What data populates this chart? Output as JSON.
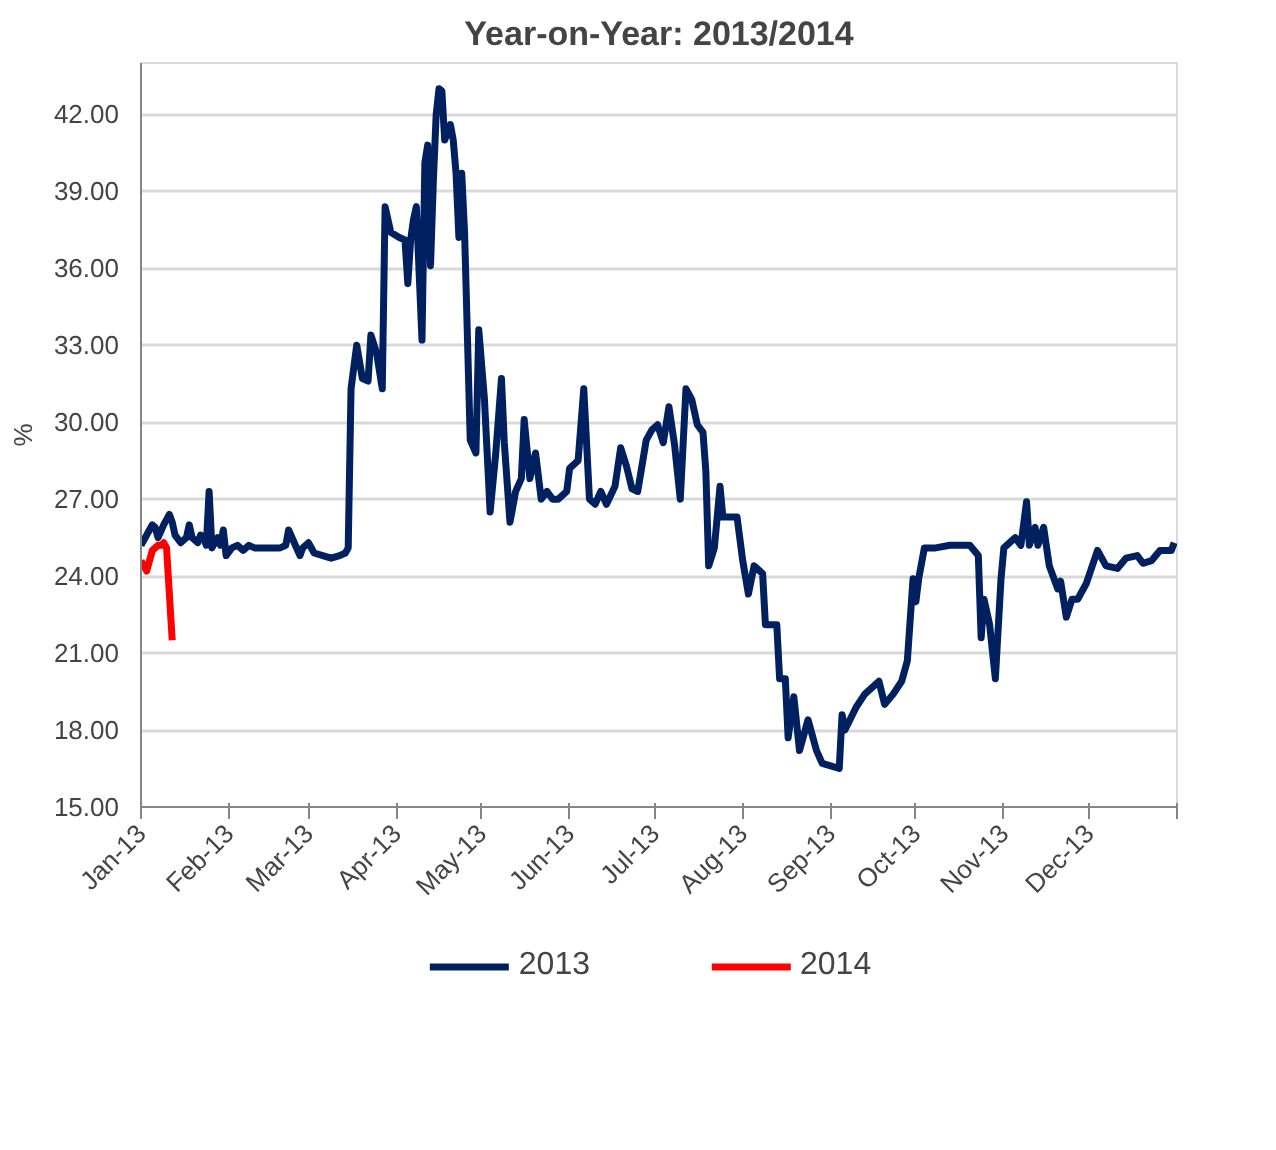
{
  "chart_data": {
    "type": "line",
    "title": "Year-on-Year: 2013/2014",
    "ylabel": "%",
    "xlim": [
      "2013-01-01",
      "2014-01-01"
    ],
    "xticks": [
      {
        "value": "2013-01-01",
        "label": "Jan-13"
      },
      {
        "value": "2013-02-01",
        "label": "Feb-13"
      },
      {
        "value": "2013-03-01",
        "label": "Mar-13"
      },
      {
        "value": "2013-04-01",
        "label": "Apr-13"
      },
      {
        "value": "2013-05-01",
        "label": "May-13"
      },
      {
        "value": "2013-06-01",
        "label": "Jun-13"
      },
      {
        "value": "2013-07-01",
        "label": "Jul-13"
      },
      {
        "value": "2013-08-01",
        "label": "Aug-13"
      },
      {
        "value": "2013-09-01",
        "label": "Sep-13"
      },
      {
        "value": "2013-10-01",
        "label": "Oct-13"
      },
      {
        "value": "2013-11-01",
        "label": "Nov-13"
      },
      {
        "value": "2013-12-01",
        "label": "Dec-13"
      },
      {
        "value": "2014-01-01",
        "label": null
      }
    ],
    "ylim": [
      15,
      44
    ],
    "yticks": [
      {
        "value": 15,
        "label": "15.00"
      },
      {
        "value": 18,
        "label": "18.00"
      },
      {
        "value": 21,
        "label": "21.00"
      },
      {
        "value": 24,
        "label": "24.00"
      },
      {
        "value": 27,
        "label": "27.00"
      },
      {
        "value": 30,
        "label": "30.00"
      },
      {
        "value": 33,
        "label": "33.00"
      },
      {
        "value": 36,
        "label": "36.00"
      },
      {
        "value": 39,
        "label": "39.00"
      },
      {
        "value": 42,
        "label": "42.00"
      }
    ],
    "grid": "y",
    "legend": "bottom",
    "line_style": "solid",
    "series": [
      {
        "name": "2013",
        "color": "#002060",
        "x": [
          "2013-01-01",
          "2013-01-03",
          "2013-01-05",
          "2013-01-06",
          "2013-01-07",
          "2013-01-09",
          "2013-01-10",
          "2013-01-11",
          "2013-01-12",
          "2013-01-13",
          "2013-01-15",
          "2013-01-17",
          "2013-01-18",
          "2013-01-19",
          "2013-01-21",
          "2013-01-22",
          "2013-01-23",
          "2013-01-24",
          "2013-01-25",
          "2013-01-26",
          "2013-01-27",
          "2013-01-28",
          "2013-01-29",
          "2013-01-30",
          "2013-01-31",
          "2013-02-02",
          "2013-02-04",
          "2013-02-06",
          "2013-02-08",
          "2013-02-10",
          "2013-02-13",
          "2013-02-16",
          "2013-02-19",
          "2013-02-21",
          "2013-02-22",
          "2013-02-24",
          "2013-02-26",
          "2013-02-27",
          "2013-03-01",
          "2013-03-03",
          "2013-03-06",
          "2013-03-09",
          "2013-03-12",
          "2013-03-14",
          "2013-03-15",
          "2013-03-16",
          "2013-03-18",
          "2013-03-20",
          "2013-03-22",
          "2013-03-23",
          "2013-03-25",
          "2013-03-27",
          "2013-03-28",
          "2013-03-30",
          "2013-04-02",
          "2013-04-04",
          "2013-04-05",
          "2013-04-06",
          "2013-04-07",
          "2013-04-08",
          "2013-04-10",
          "2013-04-11",
          "2013-04-12",
          "2013-04-13",
          "2013-04-14",
          "2013-04-15",
          "2013-04-16",
          "2013-04-17",
          "2013-04-18",
          "2013-04-20",
          "2013-04-21",
          "2013-04-22",
          "2013-04-23",
          "2013-04-24",
          "2013-04-25",
          "2013-04-27",
          "2013-04-29",
          "2013-04-30",
          "2013-05-02",
          "2013-05-04",
          "2013-05-06",
          "2013-05-08",
          "2013-05-09",
          "2013-05-11",
          "2013-05-13",
          "2013-05-15",
          "2013-05-16",
          "2013-05-18",
          "2013-05-19",
          "2013-05-20",
          "2013-05-22",
          "2013-05-24",
          "2013-05-26",
          "2013-05-28",
          "2013-05-31",
          "2013-06-01",
          "2013-06-04",
          "2013-06-06",
          "2013-06-08",
          "2013-06-10",
          "2013-06-12",
          "2013-06-14",
          "2013-06-17",
          "2013-06-19",
          "2013-06-21",
          "2013-06-23",
          "2013-06-25",
          "2013-06-28",
          "2013-06-30",
          "2013-07-02",
          "2013-07-04",
          "2013-07-06",
          "2013-07-08",
          "2013-07-10",
          "2013-07-12",
          "2013-07-14",
          "2013-07-16",
          "2013-07-18",
          "2013-07-19",
          "2013-07-20",
          "2013-07-22",
          "2013-07-24",
          "2013-07-25",
          "2013-07-27",
          "2013-07-30",
          "2013-08-01",
          "2013-08-03",
          "2013-08-05",
          "2013-08-08",
          "2013-08-09",
          "2013-08-13",
          "2013-08-14",
          "2013-08-16",
          "2013-08-17",
          "2013-08-19",
          "2013-08-21",
          "2013-08-24",
          "2013-08-27",
          "2013-08-29",
          "2013-09-01",
          "2013-09-04",
          "2013-09-05",
          "2013-09-06",
          "2013-09-10",
          "2013-09-13",
          "2013-09-17",
          "2013-09-18",
          "2013-09-20",
          "2013-09-23",
          "2013-09-26",
          "2013-09-28",
          "2013-09-30",
          "2013-10-01",
          "2013-10-02",
          "2013-10-04",
          "2013-10-08",
          "2013-10-13",
          "2013-10-20",
          "2013-10-23",
          "2013-10-24",
          "2013-10-25",
          "2013-10-27",
          "2013-10-29",
          "2013-10-31",
          "2013-11-01",
          "2013-11-05",
          "2013-11-07",
          "2013-11-09",
          "2013-11-10",
          "2013-11-12",
          "2013-11-13",
          "2013-11-15",
          "2013-11-17",
          "2013-11-20",
          "2013-11-21",
          "2013-11-23",
          "2013-11-25",
          "2013-11-27",
          "2013-11-30",
          "2013-12-04",
          "2013-12-07",
          "2013-12-11",
          "2013-12-14",
          "2013-12-18",
          "2013-12-20",
          "2013-12-23",
          "2013-12-26",
          "2013-12-30",
          "2013-12-31"
        ],
        "values": [
          25.2,
          25.6,
          26.0,
          25.9,
          25.5,
          26.0,
          26.2,
          26.4,
          26.1,
          25.6,
          25.3,
          25.5,
          26.0,
          25.5,
          25.3,
          25.6,
          25.5,
          25.2,
          27.3,
          25.1,
          25.3,
          25.5,
          25.2,
          25.8,
          24.8,
          25.1,
          25.2,
          25.0,
          25.2,
          25.1,
          25.1,
          25.1,
          25.1,
          25.2,
          25.8,
          25.3,
          24.8,
          25.1,
          25.3,
          24.9,
          24.8,
          24.7,
          24.8,
          24.9,
          25.1,
          31.3,
          33.0,
          31.7,
          31.6,
          33.4,
          32.7,
          31.3,
          38.4,
          37.4,
          37.2,
          37.1,
          35.4,
          37.1,
          37.9,
          38.4,
          33.2,
          40.1,
          40.8,
          36.1,
          39.4,
          42.0,
          43.0,
          42.9,
          41.0,
          41.6,
          41.0,
          39.7,
          37.2,
          39.7,
          37.4,
          29.3,
          28.8,
          33.6,
          30.9,
          26.5,
          28.8,
          31.7,
          29.2,
          26.1,
          27.3,
          27.8,
          30.1,
          27.8,
          28.3,
          28.8,
          27.0,
          27.3,
          27.0,
          27.0,
          27.3,
          28.2,
          28.5,
          31.3,
          27.0,
          26.8,
          27.3,
          26.8,
          27.5,
          29.0,
          28.3,
          27.4,
          27.3,
          29.3,
          29.7,
          29.9,
          29.2,
          30.6,
          29.1,
          27.0,
          31.3,
          30.9,
          29.9,
          29.6,
          28.1,
          24.4,
          25.1,
          27.5,
          26.3,
          26.3,
          26.3,
          24.6,
          23.3,
          24.4,
          24.1,
          22.1,
          22.1,
          20.0,
          20.0,
          17.7,
          19.3,
          17.2,
          18.4,
          17.2,
          16.7,
          16.6,
          16.5,
          18.6,
          18.0,
          18.9,
          19.4,
          19.8,
          19.9,
          19.0,
          19.4,
          19.9,
          20.7,
          23.9,
          23.0,
          23.9,
          25.1,
          25.1,
          25.2,
          25.2,
          24.8,
          21.6,
          23.1,
          22.1,
          20.0,
          23.9,
          25.1,
          25.5,
          25.2,
          26.9,
          25.2,
          25.9,
          25.2,
          25.9,
          24.4,
          23.5,
          23.8,
          22.4,
          23.1,
          23.1,
          23.7,
          25.0,
          24.4,
          24.3,
          24.7,
          24.8,
          24.5,
          24.6,
          25.0,
          25.0,
          25.3
        ]
      },
      {
        "name": "2014",
        "color": "#ff0000",
        "x": [
          "2013-01-01",
          "2013-01-03",
          "2013-01-05",
          "2013-01-07",
          "2013-01-08",
          "2013-01-09",
          "2013-01-10",
          "2013-01-12"
        ],
        "values": [
          24.6,
          24.2,
          25.0,
          25.2,
          25.2,
          25.3,
          25.1,
          21.5
        ]
      }
    ]
  }
}
